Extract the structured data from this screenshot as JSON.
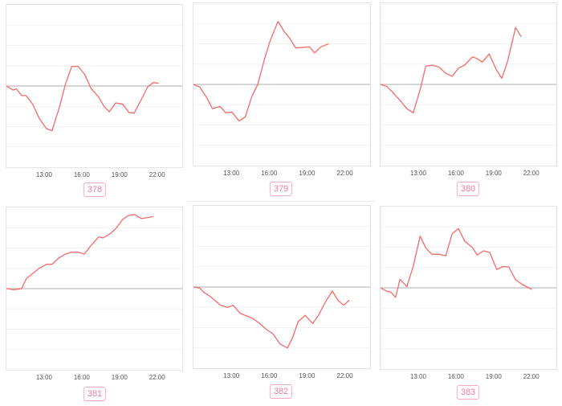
{
  "colors": {
    "line": "#f7696b",
    "zero_line": "#bdbdbd",
    "grid": "#f2f2f2",
    "badge_text": "#f07ca3",
    "badge_border": "#f6a9c2"
  },
  "chart_data": [
    {
      "type": "line",
      "label": "378",
      "xlim": [
        "10:00",
        "24:00"
      ],
      "ylim": [
        -4,
        4
      ],
      "grid": true,
      "xticks": [
        "13:00",
        "16:00",
        "19:00",
        "22:00"
      ],
      "points": [
        [
          "10:00",
          0
        ],
        [
          "10:31",
          -0.2
        ],
        [
          "10:47",
          -0.14
        ],
        [
          "11:13",
          -0.47
        ],
        [
          "11:34",
          -0.47
        ],
        [
          "12:06",
          -0.9
        ],
        [
          "12:37",
          -1.6
        ],
        [
          "13:11",
          -2.1
        ],
        [
          "13:38",
          -2.2
        ],
        [
          "14:12",
          -1.08
        ],
        [
          "14:43",
          0.13
        ],
        [
          "15:12",
          0.96
        ],
        [
          "15:43",
          0.97
        ],
        [
          "16:15",
          0.55
        ],
        [
          "16:43",
          -0.1
        ],
        [
          "17:23",
          -0.58
        ],
        [
          "17:46",
          -1.0
        ],
        [
          "18:11",
          -1.27
        ],
        [
          "18:42",
          -0.83
        ],
        [
          "19:16",
          -0.9
        ],
        [
          "19:45",
          -1.3
        ],
        [
          "20:10",
          -1.34
        ],
        [
          "20:42",
          -0.71
        ],
        [
          "21:15",
          -0.04
        ],
        [
          "21:42",
          0.17
        ],
        [
          "22:07",
          0.13
        ]
      ]
    },
    {
      "type": "line",
      "label": "379",
      "xlim": [
        "10:00",
        "24:00"
      ],
      "ylim": [
        -4,
        4
      ],
      "grid": true,
      "xticks": [
        "13:00",
        "16:00",
        "19:00",
        "22:00"
      ],
      "points": [
        [
          "10:00",
          0
        ],
        [
          "10:30",
          -0.13
        ],
        [
          "11:06",
          -0.7
        ],
        [
          "11:30",
          -1.2
        ],
        [
          "12:06",
          -1.08
        ],
        [
          "12:33",
          -1.4
        ],
        [
          "13:03",
          -1.36
        ],
        [
          "13:36",
          -1.8
        ],
        [
          "14:06",
          -1.6
        ],
        [
          "14:39",
          -0.56
        ],
        [
          "15:06",
          0
        ],
        [
          "15:39",
          1.3
        ],
        [
          "16:06",
          2.2
        ],
        [
          "16:42",
          3.1
        ],
        [
          "17:12",
          2.6
        ],
        [
          "17:36",
          2.3
        ],
        [
          "18:06",
          1.8
        ],
        [
          "19:12",
          1.85
        ],
        [
          "19:36",
          1.55
        ],
        [
          "20:06",
          1.85
        ],
        [
          "20:42",
          2.0
        ]
      ]
    },
    {
      "type": "line",
      "label": "380",
      "xlim": [
        "10:00",
        "24:00"
      ],
      "ylim": [
        -4,
        4
      ],
      "grid": true,
      "xticks": [
        "13:00",
        "16:00",
        "19:00",
        "22:00"
      ],
      "points": [
        [
          "10:00",
          0
        ],
        [
          "10:30",
          -0.1
        ],
        [
          "10:54",
          -0.35
        ],
        [
          "11:30",
          -0.75
        ],
        [
          "12:06",
          -1.2
        ],
        [
          "12:36",
          -1.4
        ],
        [
          "13:09",
          -0.25
        ],
        [
          "13:36",
          0.9
        ],
        [
          "14:09",
          0.95
        ],
        [
          "14:39",
          0.85
        ],
        [
          "15:12",
          0.55
        ],
        [
          "15:42",
          0.4
        ],
        [
          "16:12",
          0.8
        ],
        [
          "16:42",
          0.95
        ],
        [
          "17:18",
          1.35
        ],
        [
          "17:36",
          1.3
        ],
        [
          "18:06",
          1.1
        ],
        [
          "18:39",
          1.5
        ],
        [
          "19:12",
          0.75
        ],
        [
          "19:39",
          0.3
        ],
        [
          "20:06",
          1.1
        ],
        [
          "20:45",
          2.8
        ],
        [
          "21:12",
          2.35
        ]
      ]
    },
    {
      "type": "line",
      "label": "381",
      "xlim": [
        "10:00",
        "24:00"
      ],
      "ylim": [
        -4,
        4
      ],
      "grid": true,
      "xticks": [
        "13:00",
        "16:00",
        "19:00",
        "22:00"
      ],
      "points": [
        [
          "10:00",
          0
        ],
        [
          "10:36",
          -0.05
        ],
        [
          "11:12",
          0
        ],
        [
          "11:36",
          0.5
        ],
        [
          "12:06",
          0.75
        ],
        [
          "12:36",
          1.0
        ],
        [
          "13:12",
          1.2
        ],
        [
          "13:39",
          1.2
        ],
        [
          "14:09",
          1.5
        ],
        [
          "14:42",
          1.7
        ],
        [
          "15:12",
          1.8
        ],
        [
          "15:42",
          1.8
        ],
        [
          "16:12",
          1.7
        ],
        [
          "16:42",
          2.1
        ],
        [
          "17:21",
          2.55
        ],
        [
          "17:42",
          2.5
        ],
        [
          "18:15",
          2.7
        ],
        [
          "18:42",
          2.95
        ],
        [
          "19:15",
          3.4
        ],
        [
          "19:42",
          3.6
        ],
        [
          "20:12",
          3.65
        ],
        [
          "20:45",
          3.45
        ],
        [
          "21:42",
          3.55
        ]
      ]
    },
    {
      "type": "line",
      "label": "382",
      "xlim": [
        "10:00",
        "24:00"
      ],
      "ylim": [
        -4,
        4
      ],
      "grid": true,
      "xticks": [
        "13:00",
        "16:00",
        "19:00",
        "22:00"
      ],
      "points": [
        [
          "10:00",
          0
        ],
        [
          "10:30",
          -0.05
        ],
        [
          "10:48",
          -0.25
        ],
        [
          "11:18",
          -0.45
        ],
        [
          "12:09",
          -0.9
        ],
        [
          "12:42",
          -1.0
        ],
        [
          "13:09",
          -0.9
        ],
        [
          "13:42",
          -1.3
        ],
        [
          "14:42",
          -1.55
        ],
        [
          "15:15",
          -1.8
        ],
        [
          "15:48",
          -2.1
        ],
        [
          "16:18",
          -2.3
        ],
        [
          "16:51",
          -2.8
        ],
        [
          "17:27",
          -3.0
        ],
        [
          "17:51",
          -2.5
        ],
        [
          "18:18",
          -1.7
        ],
        [
          "18:51",
          -1.4
        ],
        [
          "19:27",
          -1.8
        ],
        [
          "19:54",
          -1.4
        ],
        [
          "20:27",
          -0.75
        ],
        [
          "21:00",
          -0.2
        ],
        [
          "21:27",
          -0.65
        ],
        [
          "21:54",
          -0.9
        ],
        [
          "22:21",
          -0.65
        ]
      ]
    },
    {
      "type": "line",
      "label": "383",
      "xlim": [
        "10:00",
        "24:00"
      ],
      "ylim": [
        -4,
        4
      ],
      "grid": true,
      "xticks": [
        "13:00",
        "16:00",
        "19:00",
        "22:00"
      ],
      "points": [
        [
          "10:00",
          0
        ],
        [
          "10:30",
          -0.17
        ],
        [
          "10:48",
          -0.2
        ],
        [
          "11:12",
          -0.47
        ],
        [
          "11:33",
          0.42
        ],
        [
          "12:06",
          0.06
        ],
        [
          "12:36",
          1.06
        ],
        [
          "13:09",
          2.55
        ],
        [
          "13:36",
          1.97
        ],
        [
          "14:06",
          1.65
        ],
        [
          "14:39",
          1.65
        ],
        [
          "15:12",
          1.58
        ],
        [
          "15:42",
          2.66
        ],
        [
          "16:12",
          2.92
        ],
        [
          "16:42",
          2.3
        ],
        [
          "17:18",
          1.99
        ],
        [
          "17:42",
          1.62
        ],
        [
          "18:12",
          1.82
        ],
        [
          "18:42",
          1.74
        ],
        [
          "19:15",
          0.9
        ],
        [
          "19:45",
          1.05
        ],
        [
          "20:12",
          1.03
        ],
        [
          "20:45",
          0.4
        ],
        [
          "21:18",
          0.16
        ],
        [
          "22:03",
          -0.08
        ]
      ]
    }
  ]
}
